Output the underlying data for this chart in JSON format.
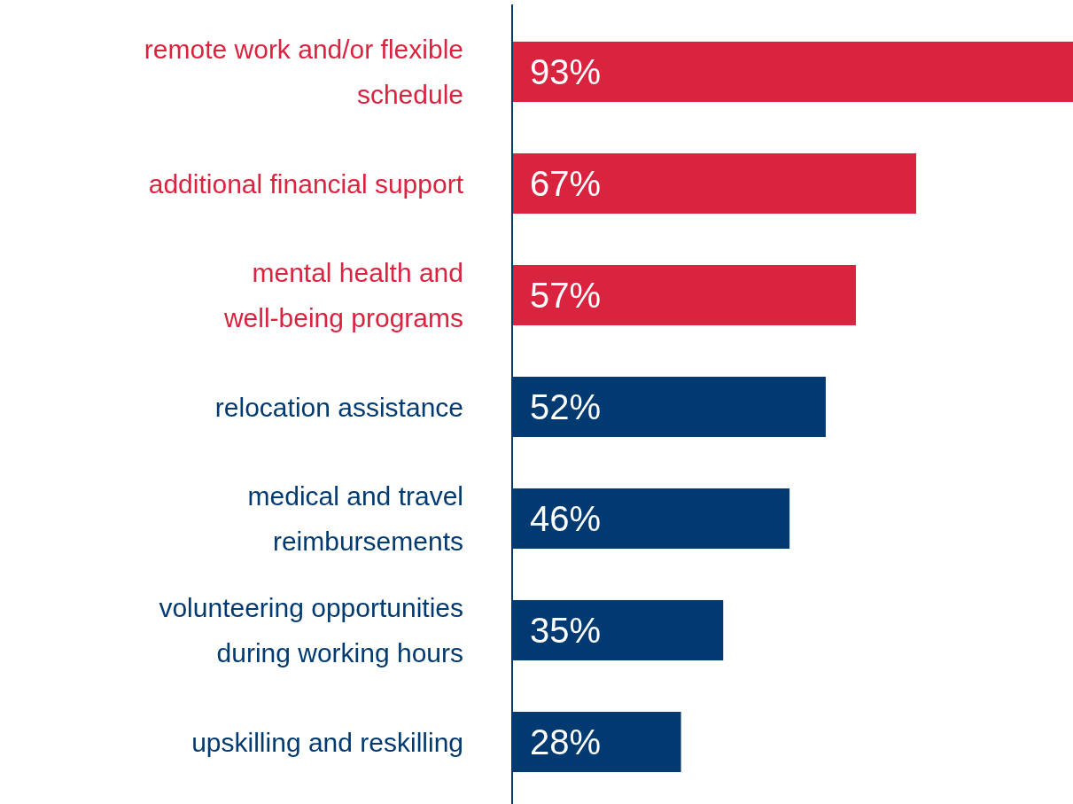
{
  "chart_data": {
    "type": "bar",
    "orientation": "horizontal",
    "categories": [
      "remote work and/or flexible schedule",
      "additional financial support",
      "mental health and well-being programs",
      "relocation assistance",
      "medical and travel reimbursements",
      "volunteering opportunities during working hours",
      "upskilling and reskilling"
    ],
    "values": [
      93,
      67,
      57,
      52,
      46,
      35,
      28
    ],
    "colors": [
      "#d9233f",
      "#d9233f",
      "#d9233f",
      "#003a70",
      "#003a70",
      "#003a70",
      "#003a70"
    ],
    "value_labels": [
      "93%",
      "67%",
      "57%",
      "52%",
      "46%",
      "35%",
      "28%"
    ]
  }
}
